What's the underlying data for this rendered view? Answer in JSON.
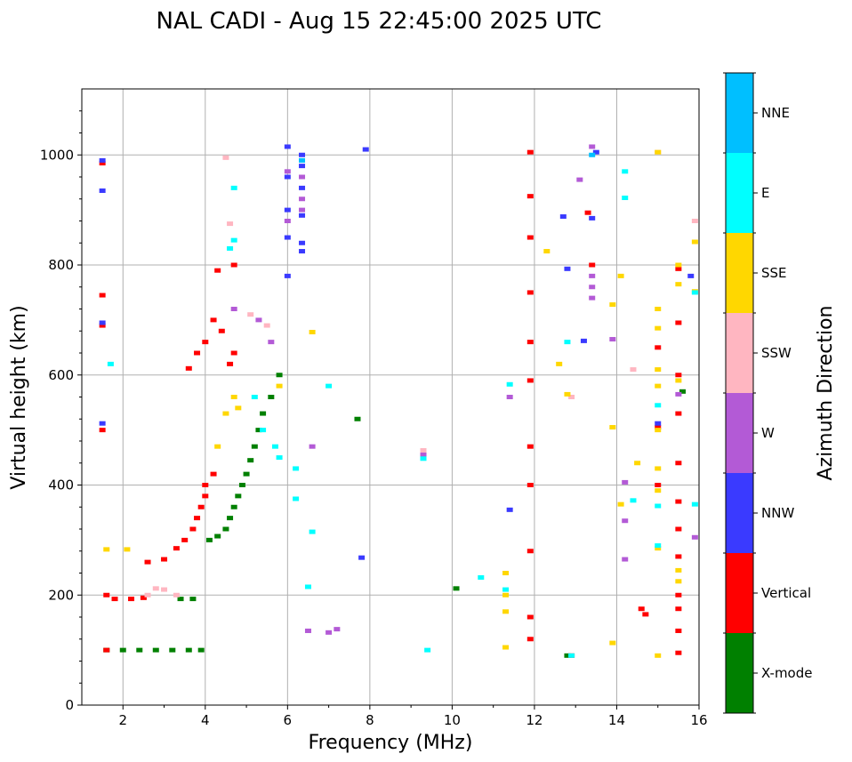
{
  "chart_data": {
    "type": "scatter",
    "title": "NAL CADI - Aug 15 22:45:00 2025 UTC",
    "xlabel": "Frequency (MHz)",
    "ylabel": "Virtual height (km)",
    "xlim": [
      1,
      16
    ],
    "ylim": [
      0,
      1120
    ],
    "xticks": [
      2,
      4,
      6,
      8,
      10,
      12,
      14,
      16
    ],
    "yticks": [
      0,
      200,
      400,
      600,
      800,
      1000
    ],
    "grid": true,
    "colorbar": {
      "label": "Azimuth Direction",
      "categories": [
        {
          "name": "X-mode",
          "color": "#008000"
        },
        {
          "name": "Vertical",
          "color": "#ff0000"
        },
        {
          "name": "NNW",
          "color": "#3a3aff"
        },
        {
          "name": "W",
          "color": "#b35ad6"
        },
        {
          "name": "SSW",
          "color": "#ffb6c1"
        },
        {
          "name": "SSE",
          "color": "#ffd700"
        },
        {
          "name": "E",
          "color": "#00ffff"
        },
        {
          "name": "NNE",
          "color": "#00bfff"
        }
      ]
    },
    "series": [
      {
        "name": "X-mode",
        "points": [
          [
            1.6,
            100
          ],
          [
            2,
            100
          ],
          [
            2.4,
            100
          ],
          [
            2.8,
            100
          ],
          [
            3.2,
            100
          ],
          [
            3.6,
            100
          ],
          [
            3.9,
            100
          ],
          [
            3.4,
            193
          ],
          [
            3.7,
            193
          ],
          [
            4.1,
            300
          ],
          [
            4.3,
            307
          ],
          [
            4.5,
            320
          ],
          [
            4.6,
            340
          ],
          [
            4.7,
            360
          ],
          [
            4.8,
            380
          ],
          [
            4.9,
            400
          ],
          [
            5,
            420
          ],
          [
            5.1,
            445
          ],
          [
            5.2,
            470
          ],
          [
            5.3,
            500
          ],
          [
            5.4,
            530
          ],
          [
            5.6,
            560
          ],
          [
            5.8,
            600
          ],
          [
            7.7,
            520
          ],
          [
            10.1,
            212
          ],
          [
            12.8,
            90
          ],
          [
            15.6,
            570
          ]
        ]
      },
      {
        "name": "Vertical",
        "points": [
          [
            1.5,
            985
          ],
          [
            1.5,
            745
          ],
          [
            1.5,
            690
          ],
          [
            1.5,
            500
          ],
          [
            1.6,
            100
          ],
          [
            1.6,
            200
          ],
          [
            1.8,
            193
          ],
          [
            2.2,
            193
          ],
          [
            2.5,
            195
          ],
          [
            2.6,
            260
          ],
          [
            3,
            265
          ],
          [
            3.3,
            285
          ],
          [
            3.5,
            300
          ],
          [
            3.7,
            320
          ],
          [
            3.8,
            340
          ],
          [
            3.9,
            360
          ],
          [
            4,
            380
          ],
          [
            4,
            400
          ],
          [
            4.2,
            420
          ],
          [
            3.6,
            612
          ],
          [
            3.8,
            640
          ],
          [
            4,
            660
          ],
          [
            4.2,
            700
          ],
          [
            4.4,
            680
          ],
          [
            4.6,
            620
          ],
          [
            4.7,
            640
          ],
          [
            4.7,
            800
          ],
          [
            4.3,
            790
          ],
          [
            11.9,
            1005
          ],
          [
            11.9,
            925
          ],
          [
            11.9,
            850
          ],
          [
            11.9,
            750
          ],
          [
            11.9,
            660
          ],
          [
            11.9,
            590
          ],
          [
            11.9,
            470
          ],
          [
            11.9,
            400
          ],
          [
            11.9,
            280
          ],
          [
            11.9,
            160
          ],
          [
            11.9,
            120
          ],
          [
            13.3,
            895
          ],
          [
            13.4,
            800
          ],
          [
            12.9,
            90
          ],
          [
            14.6,
            175
          ],
          [
            14.7,
            165
          ],
          [
            15,
            650
          ],
          [
            15,
            505
          ],
          [
            15,
            400
          ],
          [
            15.5,
            793
          ],
          [
            15.5,
            695
          ],
          [
            15.5,
            600
          ],
          [
            15.5,
            530
          ],
          [
            15.5,
            440
          ],
          [
            15.5,
            370
          ],
          [
            15.5,
            320
          ],
          [
            15.5,
            270
          ],
          [
            15.5,
            200
          ],
          [
            15.5,
            175
          ],
          [
            15.5,
            135
          ],
          [
            15.5,
            95
          ]
        ]
      },
      {
        "name": "NNW",
        "points": [
          [
            1.5,
            990
          ],
          [
            1.5,
            935
          ],
          [
            1.5,
            695
          ],
          [
            1.5,
            512
          ],
          [
            6,
            1015
          ],
          [
            6,
            960
          ],
          [
            6,
            900
          ],
          [
            6,
            850
          ],
          [
            6,
            780
          ],
          [
            6.35,
            1000
          ],
          [
            6.35,
            980
          ],
          [
            6.35,
            940
          ],
          [
            6.35,
            890
          ],
          [
            6.35,
            840
          ],
          [
            6.35,
            825
          ],
          [
            7.9,
            1010
          ],
          [
            7.8,
            268
          ],
          [
            11.4,
            355
          ],
          [
            12.7,
            888
          ],
          [
            12.8,
            793
          ],
          [
            13.4,
            885
          ],
          [
            13.5,
            1005
          ],
          [
            13.2,
            662
          ],
          [
            15,
            512
          ],
          [
            15.8,
            780
          ]
        ]
      },
      {
        "name": "W",
        "points": [
          [
            6,
            970
          ],
          [
            6,
            880
          ],
          [
            6.35,
            960
          ],
          [
            6.35,
            920
          ],
          [
            6.35,
            900
          ],
          [
            4.7,
            720
          ],
          [
            5.3,
            700
          ],
          [
            5.6,
            660
          ],
          [
            6.6,
            470
          ],
          [
            7.2,
            138
          ],
          [
            6.5,
            135
          ],
          [
            7,
            132
          ],
          [
            9.3,
            455
          ],
          [
            11.4,
            560
          ],
          [
            13.1,
            955
          ],
          [
            13.4,
            1015
          ],
          [
            13.4,
            780
          ],
          [
            13.4,
            760
          ],
          [
            13.4,
            740
          ],
          [
            13.9,
            665
          ],
          [
            14.2,
            405
          ],
          [
            14.2,
            335
          ],
          [
            14.2,
            265
          ],
          [
            15.5,
            565
          ],
          [
            15.9,
            305
          ]
        ]
      },
      {
        "name": "SSW",
        "points": [
          [
            3,
            210
          ],
          [
            2.6,
            200
          ],
          [
            3.3,
            200
          ],
          [
            2.8,
            212
          ],
          [
            5.1,
            710
          ],
          [
            5.5,
            690
          ],
          [
            4.6,
            875
          ],
          [
            4.5,
            995
          ],
          [
            9.3,
            463
          ],
          [
            12.9,
            560
          ],
          [
            14.4,
            610
          ],
          [
            15,
            1005
          ],
          [
            15.9,
            880
          ]
        ]
      },
      {
        "name": "SSE",
        "points": [
          [
            1.6,
            283
          ],
          [
            2.1,
            283
          ],
          [
            4.3,
            470
          ],
          [
            4.5,
            530
          ],
          [
            4.7,
            560
          ],
          [
            4.8,
            540
          ],
          [
            5.8,
            580
          ],
          [
            6.6,
            678
          ],
          [
            11.3,
            240
          ],
          [
            11.3,
            200
          ],
          [
            11.3,
            170
          ],
          [
            11.3,
            105
          ],
          [
            12.3,
            825
          ],
          [
            12.6,
            620
          ],
          [
            12.8,
            565
          ],
          [
            13.9,
            728
          ],
          [
            13.9,
            505
          ],
          [
            14.1,
            780
          ],
          [
            14.1,
            365
          ],
          [
            13.9,
            113
          ],
          [
            14.5,
            440
          ],
          [
            15,
            1005
          ],
          [
            15,
            720
          ],
          [
            15,
            685
          ],
          [
            15,
            610
          ],
          [
            15,
            580
          ],
          [
            15,
            500
          ],
          [
            15,
            430
          ],
          [
            15,
            390
          ],
          [
            15,
            285
          ],
          [
            15,
            90
          ],
          [
            15.5,
            800
          ],
          [
            15.5,
            765
          ],
          [
            15.5,
            590
          ],
          [
            15.5,
            245
          ],
          [
            15.5,
            225
          ],
          [
            15.9,
            842
          ],
          [
            15.9,
            752
          ]
        ]
      },
      {
        "name": "E",
        "points": [
          [
            1.7,
            620
          ],
          [
            4.7,
            940
          ],
          [
            4.7,
            845
          ],
          [
            4.6,
            830
          ],
          [
            5.2,
            560
          ],
          [
            5.4,
            500
          ],
          [
            5.7,
            470
          ],
          [
            5.8,
            450
          ],
          [
            6.2,
            430
          ],
          [
            6.2,
            375
          ],
          [
            6.6,
            315
          ],
          [
            6.5,
            215
          ],
          [
            7,
            580
          ],
          [
            9.3,
            448
          ],
          [
            9.4,
            100
          ],
          [
            10.7,
            232
          ],
          [
            11.3,
            210
          ],
          [
            11.4,
            583
          ],
          [
            12.8,
            660
          ],
          [
            12.9,
            90
          ],
          [
            14.2,
            970
          ],
          [
            14.2,
            922
          ],
          [
            14.4,
            372
          ],
          [
            15,
            545
          ],
          [
            15,
            362
          ],
          [
            15,
            290
          ],
          [
            15.9,
            750
          ],
          [
            15.9,
            365
          ]
        ]
      },
      {
        "name": "NNE",
        "points": [
          [
            6.35,
            990
          ],
          [
            13.4,
            1000
          ]
        ]
      }
    ]
  }
}
